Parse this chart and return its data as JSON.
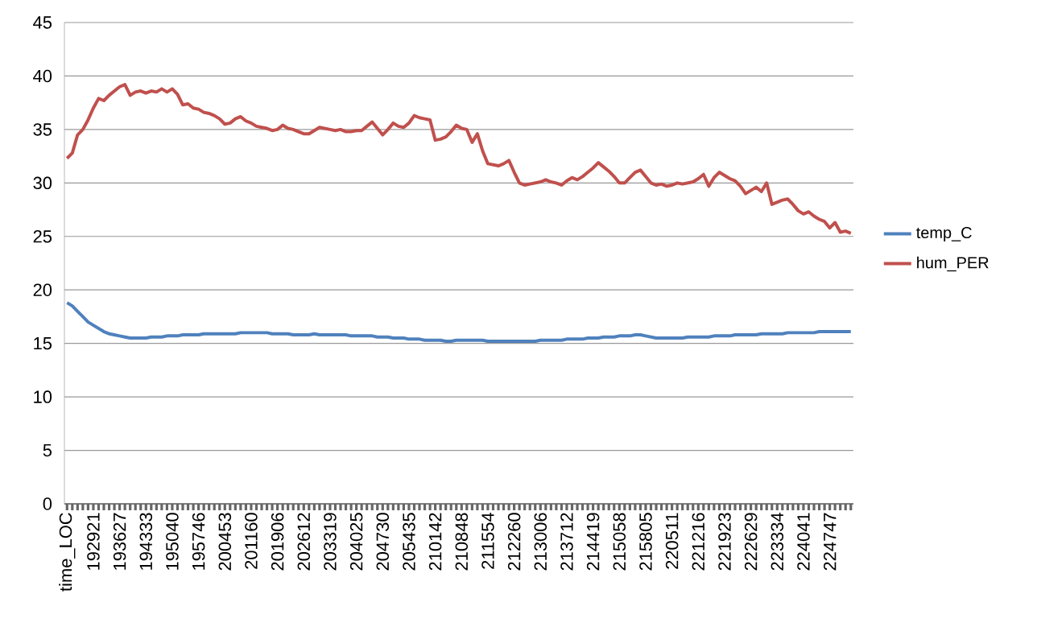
{
  "chart_data": {
    "type": "line",
    "categories": [
      "time_LOC",
      null,
      null,
      null,
      null,
      "192921",
      null,
      null,
      null,
      null,
      "193627",
      null,
      null,
      null,
      null,
      "194333",
      null,
      null,
      null,
      null,
      "195040",
      null,
      null,
      null,
      null,
      "195746",
      null,
      null,
      null,
      null,
      "200453",
      null,
      null,
      null,
      null,
      "201160",
      null,
      null,
      null,
      null,
      "201906",
      null,
      null,
      null,
      null,
      "202612",
      null,
      null,
      null,
      null,
      "203319",
      null,
      null,
      null,
      null,
      "204025",
      null,
      null,
      null,
      null,
      "204730",
      null,
      null,
      null,
      null,
      "205435",
      null,
      null,
      null,
      null,
      "210142",
      null,
      null,
      null,
      null,
      "210848",
      null,
      null,
      null,
      null,
      "211554",
      null,
      null,
      null,
      null,
      "212260",
      null,
      null,
      null,
      null,
      "213006",
      null,
      null,
      null,
      null,
      "213712",
      null,
      null,
      null,
      null,
      "214419",
      null,
      null,
      null,
      null,
      "215058",
      null,
      null,
      null,
      null,
      "215805",
      null,
      null,
      null,
      null,
      "220511",
      null,
      null,
      null,
      null,
      "221216",
      null,
      null,
      null,
      null,
      "221923",
      null,
      null,
      null,
      null,
      "222629",
      null,
      null,
      null,
      null,
      "223334",
      null,
      null,
      null,
      null,
      "224041",
      null,
      null,
      null,
      null,
      "224747",
      null,
      null,
      null,
      null
    ],
    "series": [
      {
        "name": "temp_C",
        "color": "#4f81bd",
        "values": [
          18.8,
          18.5,
          18.0,
          17.5,
          17.0,
          16.7,
          16.4,
          16.1,
          15.9,
          15.8,
          15.7,
          15.6,
          15.5,
          15.5,
          15.5,
          15.5,
          15.6,
          15.6,
          15.6,
          15.7,
          15.7,
          15.7,
          15.8,
          15.8,
          15.8,
          15.8,
          15.9,
          15.9,
          15.9,
          15.9,
          15.9,
          15.9,
          15.9,
          16.0,
          16.0,
          16.0,
          16.0,
          16.0,
          16.0,
          15.9,
          15.9,
          15.9,
          15.9,
          15.8,
          15.8,
          15.8,
          15.8,
          15.9,
          15.8,
          15.8,
          15.8,
          15.8,
          15.8,
          15.8,
          15.7,
          15.7,
          15.7,
          15.7,
          15.7,
          15.6,
          15.6,
          15.6,
          15.5,
          15.5,
          15.5,
          15.4,
          15.4,
          15.4,
          15.3,
          15.3,
          15.3,
          15.3,
          15.2,
          15.2,
          15.3,
          15.3,
          15.3,
          15.3,
          15.3,
          15.3,
          15.2,
          15.2,
          15.2,
          15.2,
          15.2,
          15.2,
          15.2,
          15.2,
          15.2,
          15.2,
          15.3,
          15.3,
          15.3,
          15.3,
          15.3,
          15.4,
          15.4,
          15.4,
          15.4,
          15.5,
          15.5,
          15.5,
          15.6,
          15.6,
          15.6,
          15.7,
          15.7,
          15.7,
          15.8,
          15.8,
          15.7,
          15.6,
          15.5,
          15.5,
          15.5,
          15.5,
          15.5,
          15.5,
          15.6,
          15.6,
          15.6,
          15.6,
          15.6,
          15.7,
          15.7,
          15.7,
          15.7,
          15.8,
          15.8,
          15.8,
          15.8,
          15.8,
          15.9,
          15.9,
          15.9,
          15.9,
          15.9,
          16.0,
          16.0,
          16.0,
          16.0,
          16.0,
          16.0,
          16.1,
          16.1,
          16.1,
          16.1,
          16.1,
          16.1,
          16.1
        ]
      },
      {
        "name": "hum_PER",
        "color": "#c0504d",
        "values": [
          32.3,
          32.8,
          34.5,
          35.0,
          35.9,
          37.0,
          37.9,
          37.7,
          38.2,
          38.6,
          39.0,
          39.2,
          38.2,
          38.5,
          38.6,
          38.4,
          38.6,
          38.5,
          38.8,
          38.5,
          38.8,
          38.3,
          37.3,
          37.4,
          37.0,
          36.9,
          36.6,
          36.5,
          36.3,
          36.0,
          35.5,
          35.6,
          36.0,
          36.2,
          35.8,
          35.6,
          35.3,
          35.2,
          35.1,
          34.9,
          35.0,
          35.4,
          35.1,
          35.0,
          34.8,
          34.6,
          34.6,
          34.9,
          35.2,
          35.1,
          35.0,
          34.9,
          35.0,
          34.8,
          34.8,
          34.9,
          34.9,
          35.3,
          35.7,
          35.1,
          34.5,
          35.0,
          35.6,
          35.3,
          35.2,
          35.6,
          36.3,
          36.1,
          36.0,
          35.9,
          34.0,
          34.1,
          34.3,
          34.8,
          35.4,
          35.1,
          35.0,
          33.8,
          34.6,
          33.0,
          31.8,
          31.7,
          31.6,
          31.8,
          32.1,
          31.0,
          30.0,
          29.8,
          29.9,
          30.0,
          30.1,
          30.3,
          30.1,
          30.0,
          29.8,
          30.2,
          30.5,
          30.3,
          30.6,
          31.0,
          31.4,
          31.9,
          31.5,
          31.1,
          30.6,
          30.0,
          30.0,
          30.5,
          31.0,
          31.2,
          30.6,
          30.0,
          29.8,
          29.9,
          29.7,
          29.8,
          30.0,
          29.9,
          30.0,
          30.1,
          30.4,
          30.8,
          29.7,
          30.5,
          31.0,
          30.7,
          30.4,
          30.2,
          29.7,
          29.0,
          29.3,
          29.6,
          29.2,
          30.0,
          28.0,
          28.2,
          28.4,
          28.5,
          28.0,
          27.4,
          27.1,
          27.3,
          26.9,
          26.6,
          26.4,
          25.8,
          26.3,
          25.4,
          25.5,
          25.3
        ]
      }
    ],
    "ylim": [
      0,
      45
    ],
    "yticks": [
      0,
      5,
      10,
      15,
      20,
      25,
      30,
      35,
      40,
      45
    ],
    "grid": "y",
    "legend": "right",
    "marker": "none",
    "line_style": "solid"
  }
}
